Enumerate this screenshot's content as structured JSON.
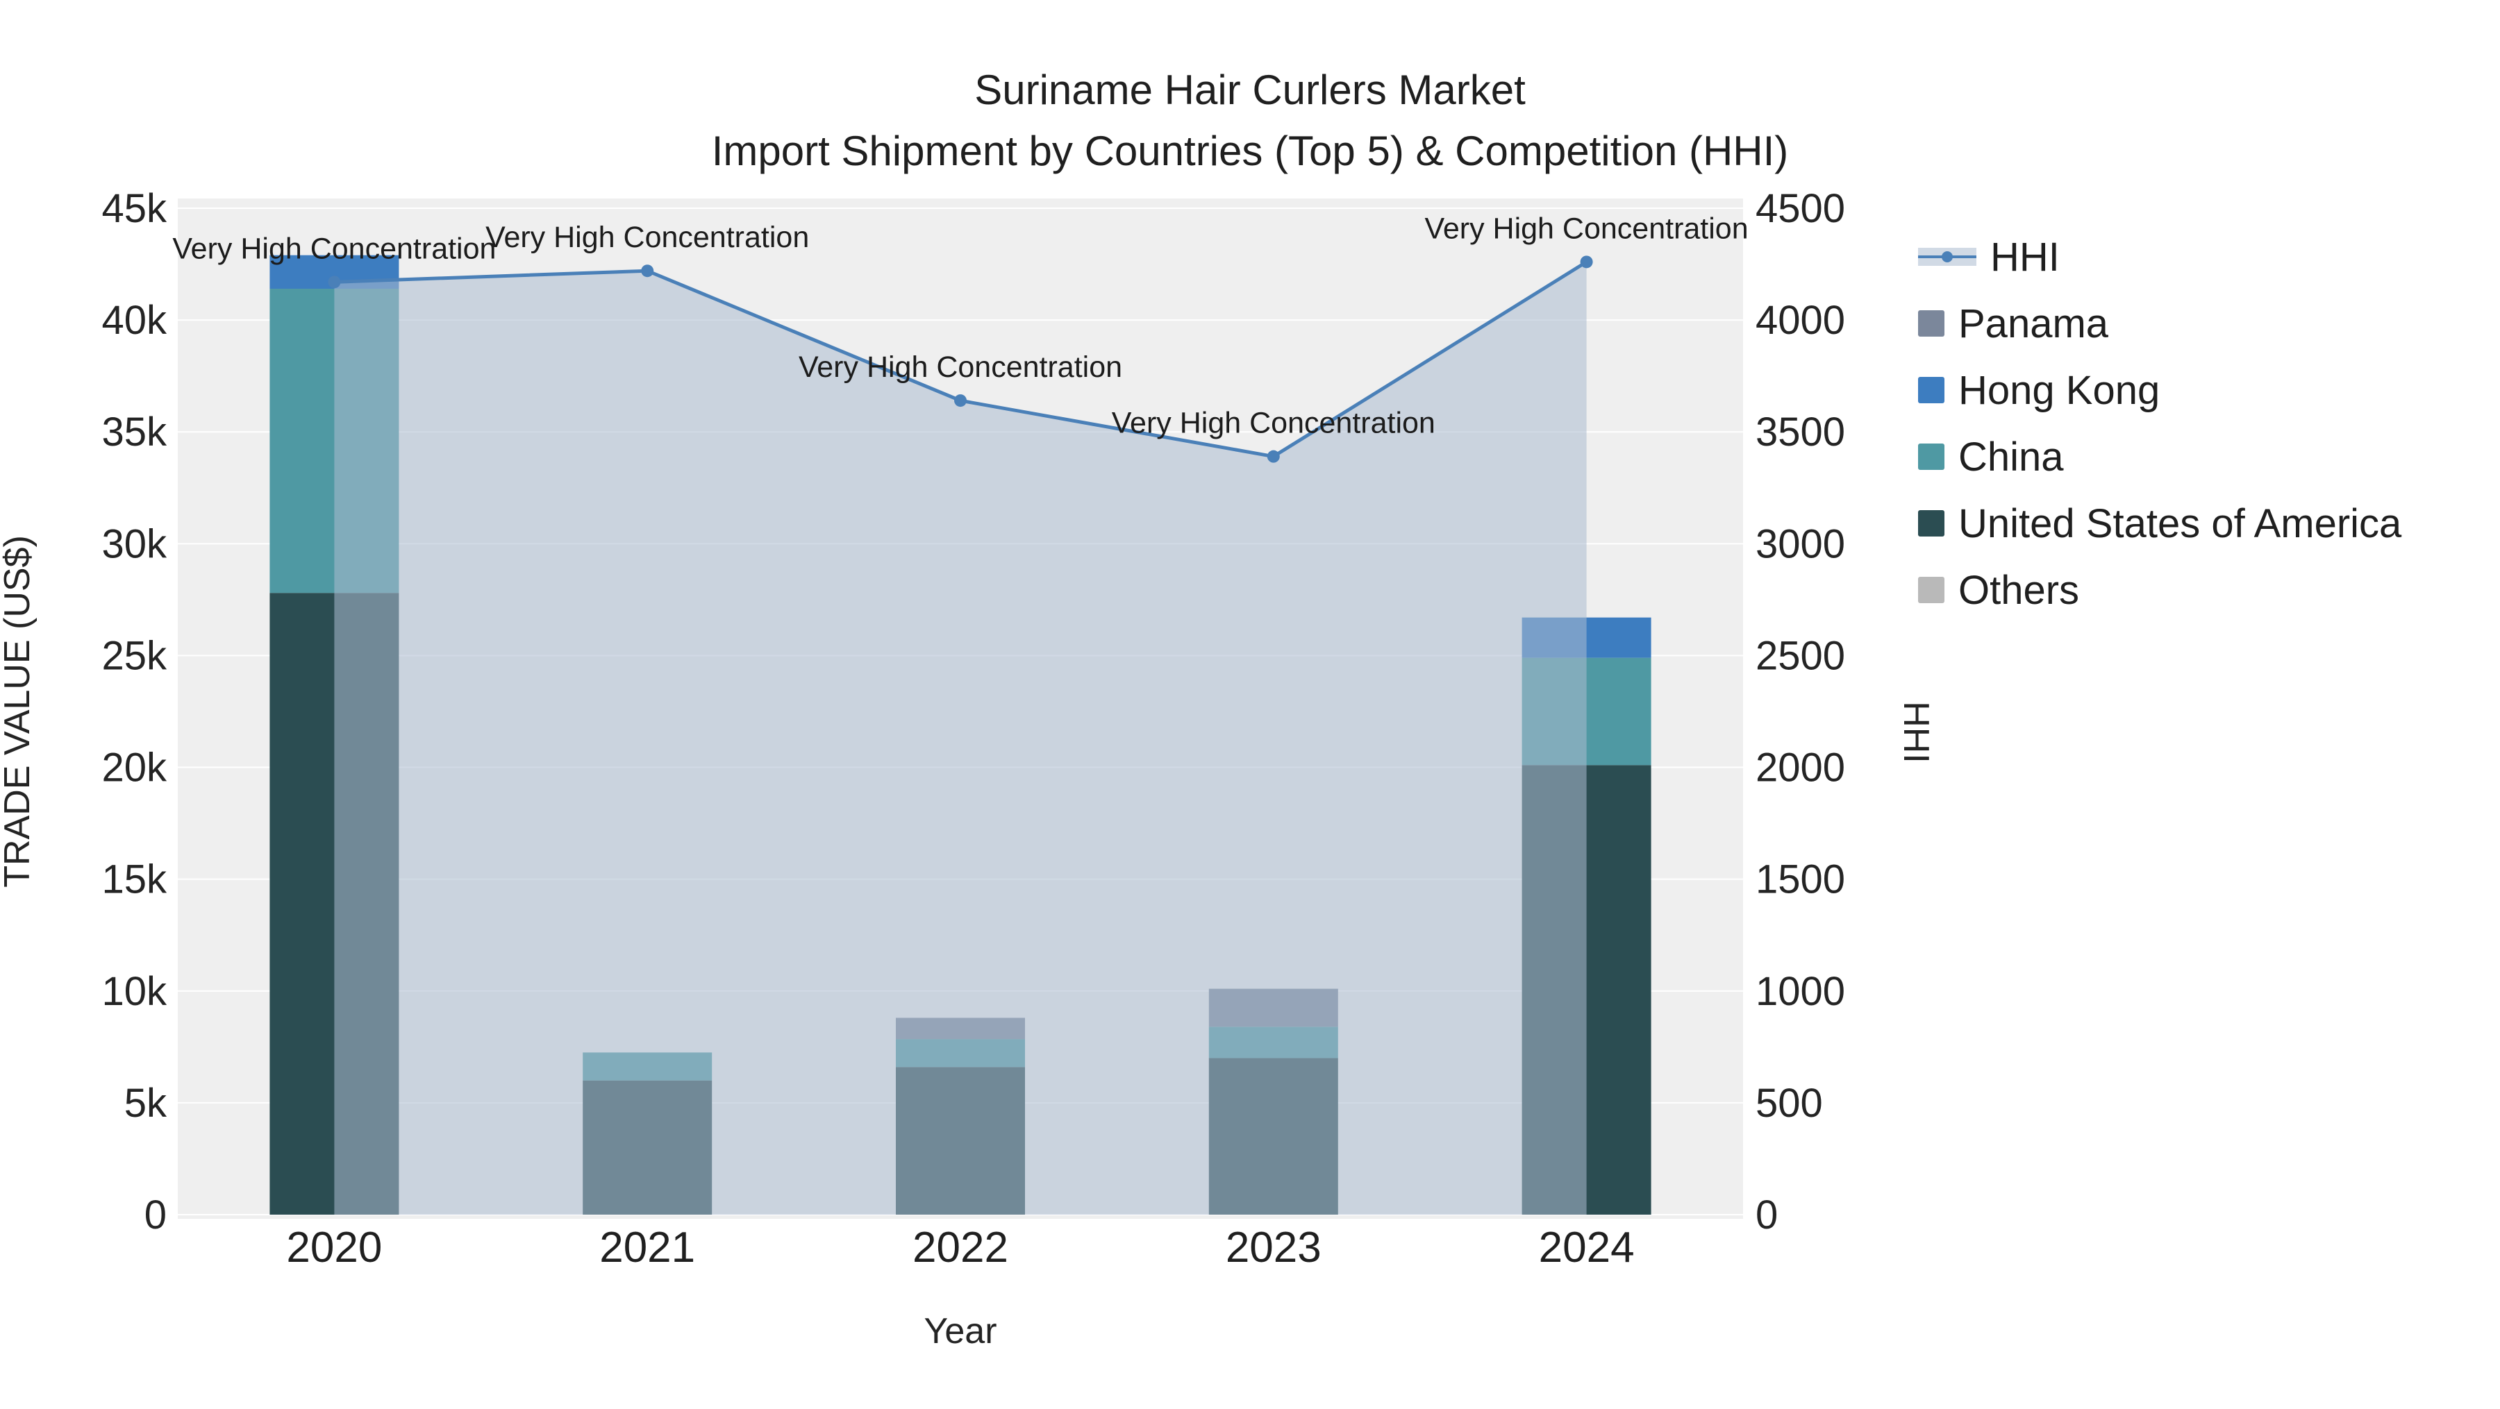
{
  "title": {
    "line1": "Suriname Hair Curlers Market",
    "line2": "Import Shipment by Countries (Top 5) & Competition (HHI)"
  },
  "chart_data": {
    "type": "combo: stacked bar + line with area fill",
    "categories": [
      "2020",
      "2021",
      "2022",
      "2023",
      "2024"
    ],
    "bar_series": [
      {
        "name": "United States of America",
        "color": "#2b4d52",
        "values": [
          27800,
          6000,
          6600,
          7000,
          20100
        ]
      },
      {
        "name": "China",
        "color": "#4f99a3",
        "values": [
          13600,
          1250,
          1250,
          1400,
          4800
        ]
      },
      {
        "name": "Hong Kong",
        "color": "#3d7dc0",
        "values": [
          1500,
          0,
          0,
          0,
          1800
        ]
      },
      {
        "name": "Panama",
        "color": "#7b879b",
        "values": [
          0,
          0,
          950,
          1700,
          0
        ]
      },
      {
        "name": "Others",
        "color": "#b9b9b9",
        "values": [
          0,
          0,
          0,
          0,
          0
        ]
      }
    ],
    "line_series": {
      "name": "HHI",
      "color": "#4a80b8",
      "area_fill": "rgba(172,187,208,0.55)",
      "values": [
        4170,
        4220,
        3640,
        3390,
        4260
      ]
    },
    "annotations": [
      {
        "category": "2020",
        "text": "Very High Concentration"
      },
      {
        "category": "2021",
        "text": "Very High Concentration"
      },
      {
        "category": "2022",
        "text": "Very High Concentration"
      },
      {
        "category": "2023",
        "text": "Very High Concentration"
      },
      {
        "category": "2024",
        "text": "Very High Concentration"
      }
    ],
    "left_axis": {
      "label": "TRADE VALUE (US$)",
      "min": 0,
      "max": 45000,
      "step": 5000,
      "tick_suffix": "k"
    },
    "right_axis": {
      "label": "HHI",
      "min": 0,
      "max": 4500,
      "step": 500
    },
    "x_axis": {
      "label": "Year"
    },
    "legend": [
      {
        "name": "HHI",
        "type": "line",
        "color": "#4a80b8",
        "fill": "rgba(172,187,208,0.55)"
      },
      {
        "name": "Panama",
        "type": "square",
        "color": "#7b879b"
      },
      {
        "name": "Hong Kong",
        "type": "square",
        "color": "#3d7dc0"
      },
      {
        "name": "China",
        "type": "square",
        "color": "#4f99a3"
      },
      {
        "name": "United States of America",
        "type": "square",
        "color": "#2b4d52"
      },
      {
        "name": "Others",
        "type": "square",
        "color": "#b9b9b9"
      }
    ],
    "grid": "horizontal white gridlines on light gray plot background",
    "legend_position": "right"
  }
}
